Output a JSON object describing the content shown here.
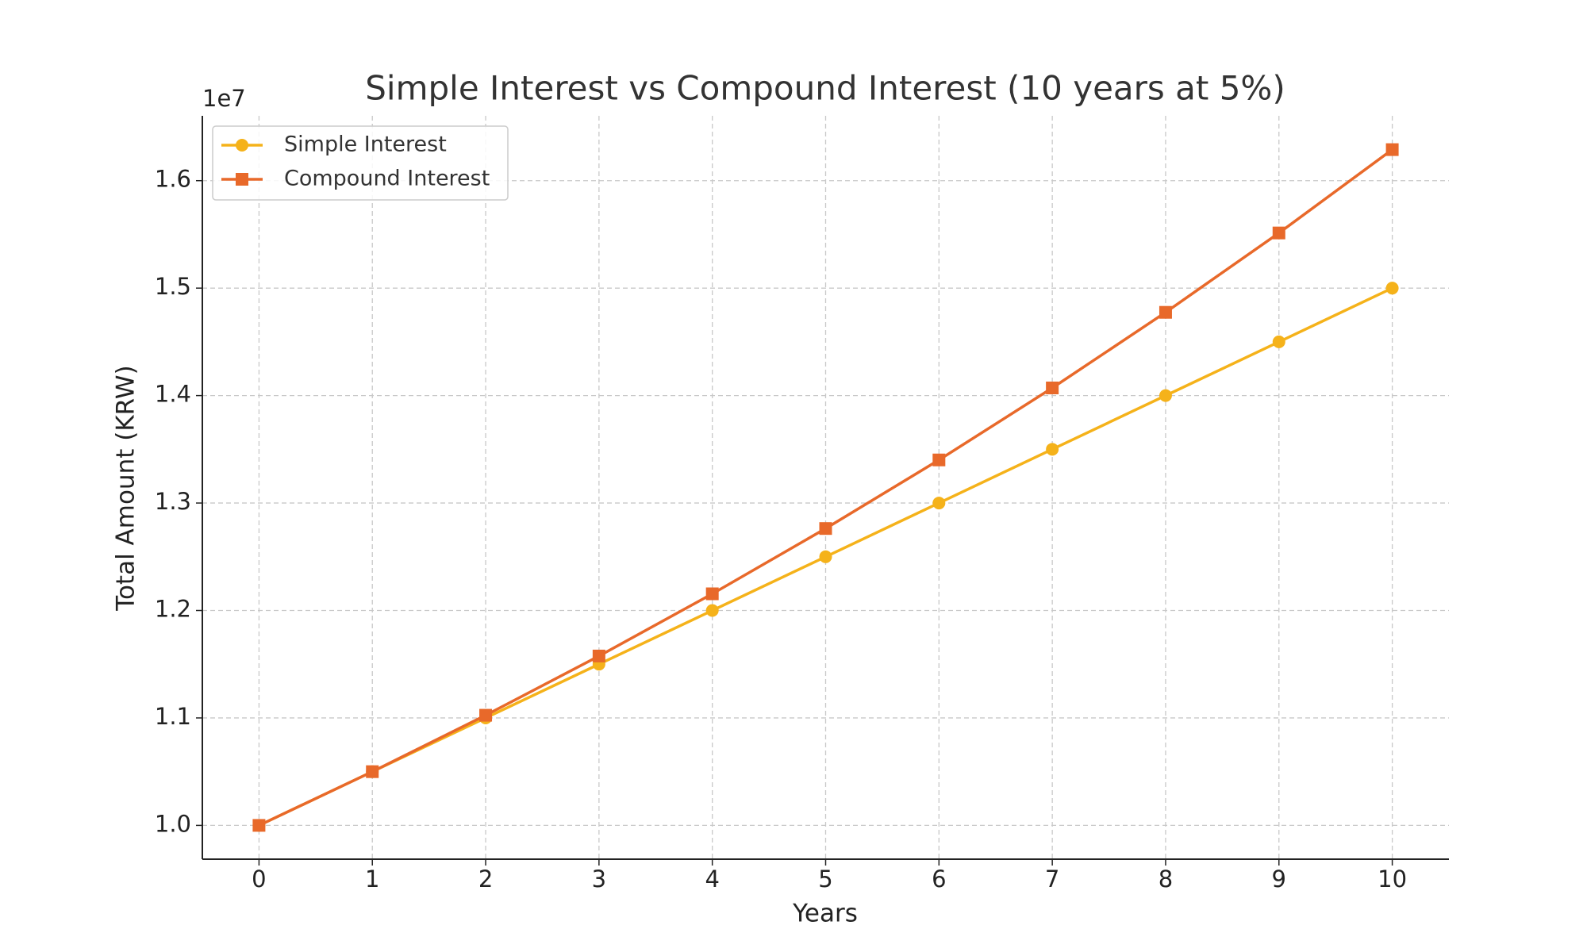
{
  "chart_data": {
    "type": "line",
    "title": "Simple Interest vs Compound Interest (10 years at 5%)",
    "xlabel": "Years",
    "ylabel": "Total Amount (KRW)",
    "y_offset_label": "1e7",
    "x": [
      0,
      1,
      2,
      3,
      4,
      5,
      6,
      7,
      8,
      9,
      10
    ],
    "series": [
      {
        "name": "Simple Interest",
        "color": "#f5b21a",
        "marker": "circle",
        "values": [
          10000000,
          10500000,
          11000000,
          11500000,
          12000000,
          12500000,
          13000000,
          13500000,
          14000000,
          14500000,
          15000000
        ]
      },
      {
        "name": "Compound Interest",
        "color": "#e8692a",
        "marker": "square",
        "values": [
          10000000,
          10500000,
          11025000,
          11576250,
          12155063,
          12762816,
          13400956,
          14071004,
          14774554,
          15513282,
          16288946
        ]
      }
    ],
    "xlim": [
      -0.5,
      10.5
    ],
    "xticks": [
      0,
      1,
      2,
      3,
      4,
      5,
      6,
      7,
      8,
      9,
      10
    ],
    "ylim": [
      9685500,
      16603400
    ],
    "yticks": [
      {
        "value": 10000000,
        "label": "1.0"
      },
      {
        "value": 11000000,
        "label": "1.1"
      },
      {
        "value": 12000000,
        "label": "1.2"
      },
      {
        "value": 13000000,
        "label": "1.3"
      },
      {
        "value": 14000000,
        "label": "1.4"
      },
      {
        "value": 15000000,
        "label": "1.5"
      },
      {
        "value": 16000000,
        "label": "1.6"
      }
    ],
    "grid": true,
    "legend": "upper-left"
  }
}
